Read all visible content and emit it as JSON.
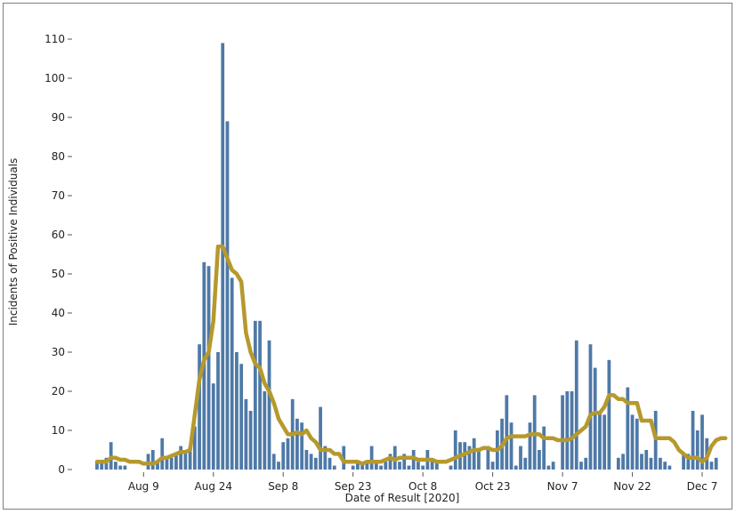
{
  "chart_data": {
    "type": "bar",
    "xlabel": "Date of Result [2020]",
    "ylabel": "Incidents of Positive Individuals",
    "ylim": [
      0,
      110
    ],
    "yticks": [
      0,
      10,
      20,
      30,
      40,
      50,
      60,
      70,
      80,
      90,
      100,
      110
    ],
    "x_start": "2020-07-30",
    "x_end": "2020-12-07",
    "xticks": [
      {
        "date": "2020-08-09",
        "label": "Aug 9"
      },
      {
        "date": "2020-08-24",
        "label": "Aug 24"
      },
      {
        "date": "2020-09-08",
        "label": "Sep 8"
      },
      {
        "date": "2020-09-23",
        "label": "Sep 23"
      },
      {
        "date": "2020-10-08",
        "label": "Oct 8"
      },
      {
        "date": "2020-10-23",
        "label": "Oct 23"
      },
      {
        "date": "2020-11-07",
        "label": "Nov 7"
      },
      {
        "date": "2020-11-22",
        "label": "Nov 22"
      },
      {
        "date": "2020-12-07",
        "label": "Dec 7"
      }
    ],
    "bar_color": "#4e79a7",
    "line_color": "#b6992d",
    "series": [
      {
        "type": "bar",
        "values": [
          2,
          2,
          3,
          7,
          2,
          1,
          1,
          0,
          0,
          0,
          0,
          4,
          5,
          2,
          8,
          3,
          3,
          4,
          6,
          5,
          6,
          11,
          32,
          53,
          52,
          22,
          30,
          109,
          89,
          49,
          30,
          27,
          18,
          15,
          38,
          38,
          20,
          33,
          4,
          2,
          7,
          8,
          18,
          13,
          12,
          5,
          4,
          3,
          16,
          6,
          3,
          1,
          0,
          6,
          0,
          1,
          2,
          2,
          2,
          6,
          2,
          1,
          2,
          4,
          6,
          2,
          4,
          1,
          5,
          2,
          1,
          5,
          2,
          2,
          0,
          0,
          1,
          10,
          7,
          7,
          6,
          8,
          5,
          0,
          6,
          2,
          10,
          13,
          19,
          12,
          1,
          6,
          3,
          12,
          19,
          5,
          11,
          1,
          2,
          0,
          19,
          20,
          20,
          33,
          2,
          3,
          32,
          26,
          15,
          14,
          28,
          0,
          3,
          4,
          21,
          14,
          13,
          4,
          5,
          3,
          15,
          3,
          2,
          1,
          0,
          0,
          4,
          4,
          15,
          10,
          14,
          8,
          2,
          3
        ]
      },
      {
        "type": "line",
        "values": [
          2,
          2,
          2,
          3,
          3,
          2.5,
          2.5,
          2,
          2,
          2,
          1.5,
          1.5,
          1.5,
          2,
          3,
          3,
          3.5,
          4,
          4.5,
          4.5,
          5,
          14,
          23,
          28,
          30,
          38,
          57,
          57,
          54,
          51,
          50,
          48,
          35,
          30,
          27,
          26,
          22,
          20,
          17,
          13,
          11,
          9,
          9,
          9.5,
          9,
          10,
          8,
          7,
          5,
          5,
          5,
          4,
          4,
          2,
          2,
          2,
          2,
          1.5,
          2,
          2,
          2,
          2,
          2.5,
          3,
          2.5,
          3,
          3,
          3,
          3,
          2.5,
          2.5,
          2.5,
          2.5,
          2,
          2,
          2,
          2.5,
          3,
          3.5,
          4,
          4.5,
          5,
          5,
          5.5,
          5.5,
          5,
          5,
          6,
          8,
          8.5,
          8.5,
          8.5,
          8.5,
          9,
          9,
          9,
          8,
          8,
          8,
          7.5,
          7.5,
          7.5,
          8,
          9,
          10,
          11,
          14,
          14.5,
          14.5,
          16,
          19,
          19,
          18,
          18,
          17,
          17,
          17,
          12.5,
          12.5,
          12.5,
          8,
          8,
          8,
          8,
          7,
          5,
          4,
          3,
          3,
          3,
          2,
          3,
          6,
          7.5,
          8,
          8
        ]
      }
    ]
  }
}
